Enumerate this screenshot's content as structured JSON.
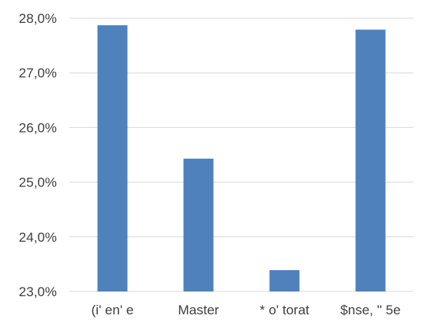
{
  "chart_data": {
    "type": "bar",
    "categories": [
      "(i' en' e",
      "Master",
      "* o' torat",
      "$nse,  '' 5e"
    ],
    "values": [
      27.87,
      25.43,
      23.39,
      27.79
    ],
    "y_tick_labels": [
      "23,0%",
      "24,0%",
      "25,0%",
      "26,0%",
      "27,0%",
      "28,0%"
    ],
    "y_ticks": [
      23,
      24,
      25,
      26,
      27,
      28
    ],
    "ylim": [
      23,
      28.3
    ],
    "grid": true,
    "colors": {
      "bar": "#4f81bd",
      "grid": "#d9d9d9",
      "text": "#404040"
    }
  }
}
